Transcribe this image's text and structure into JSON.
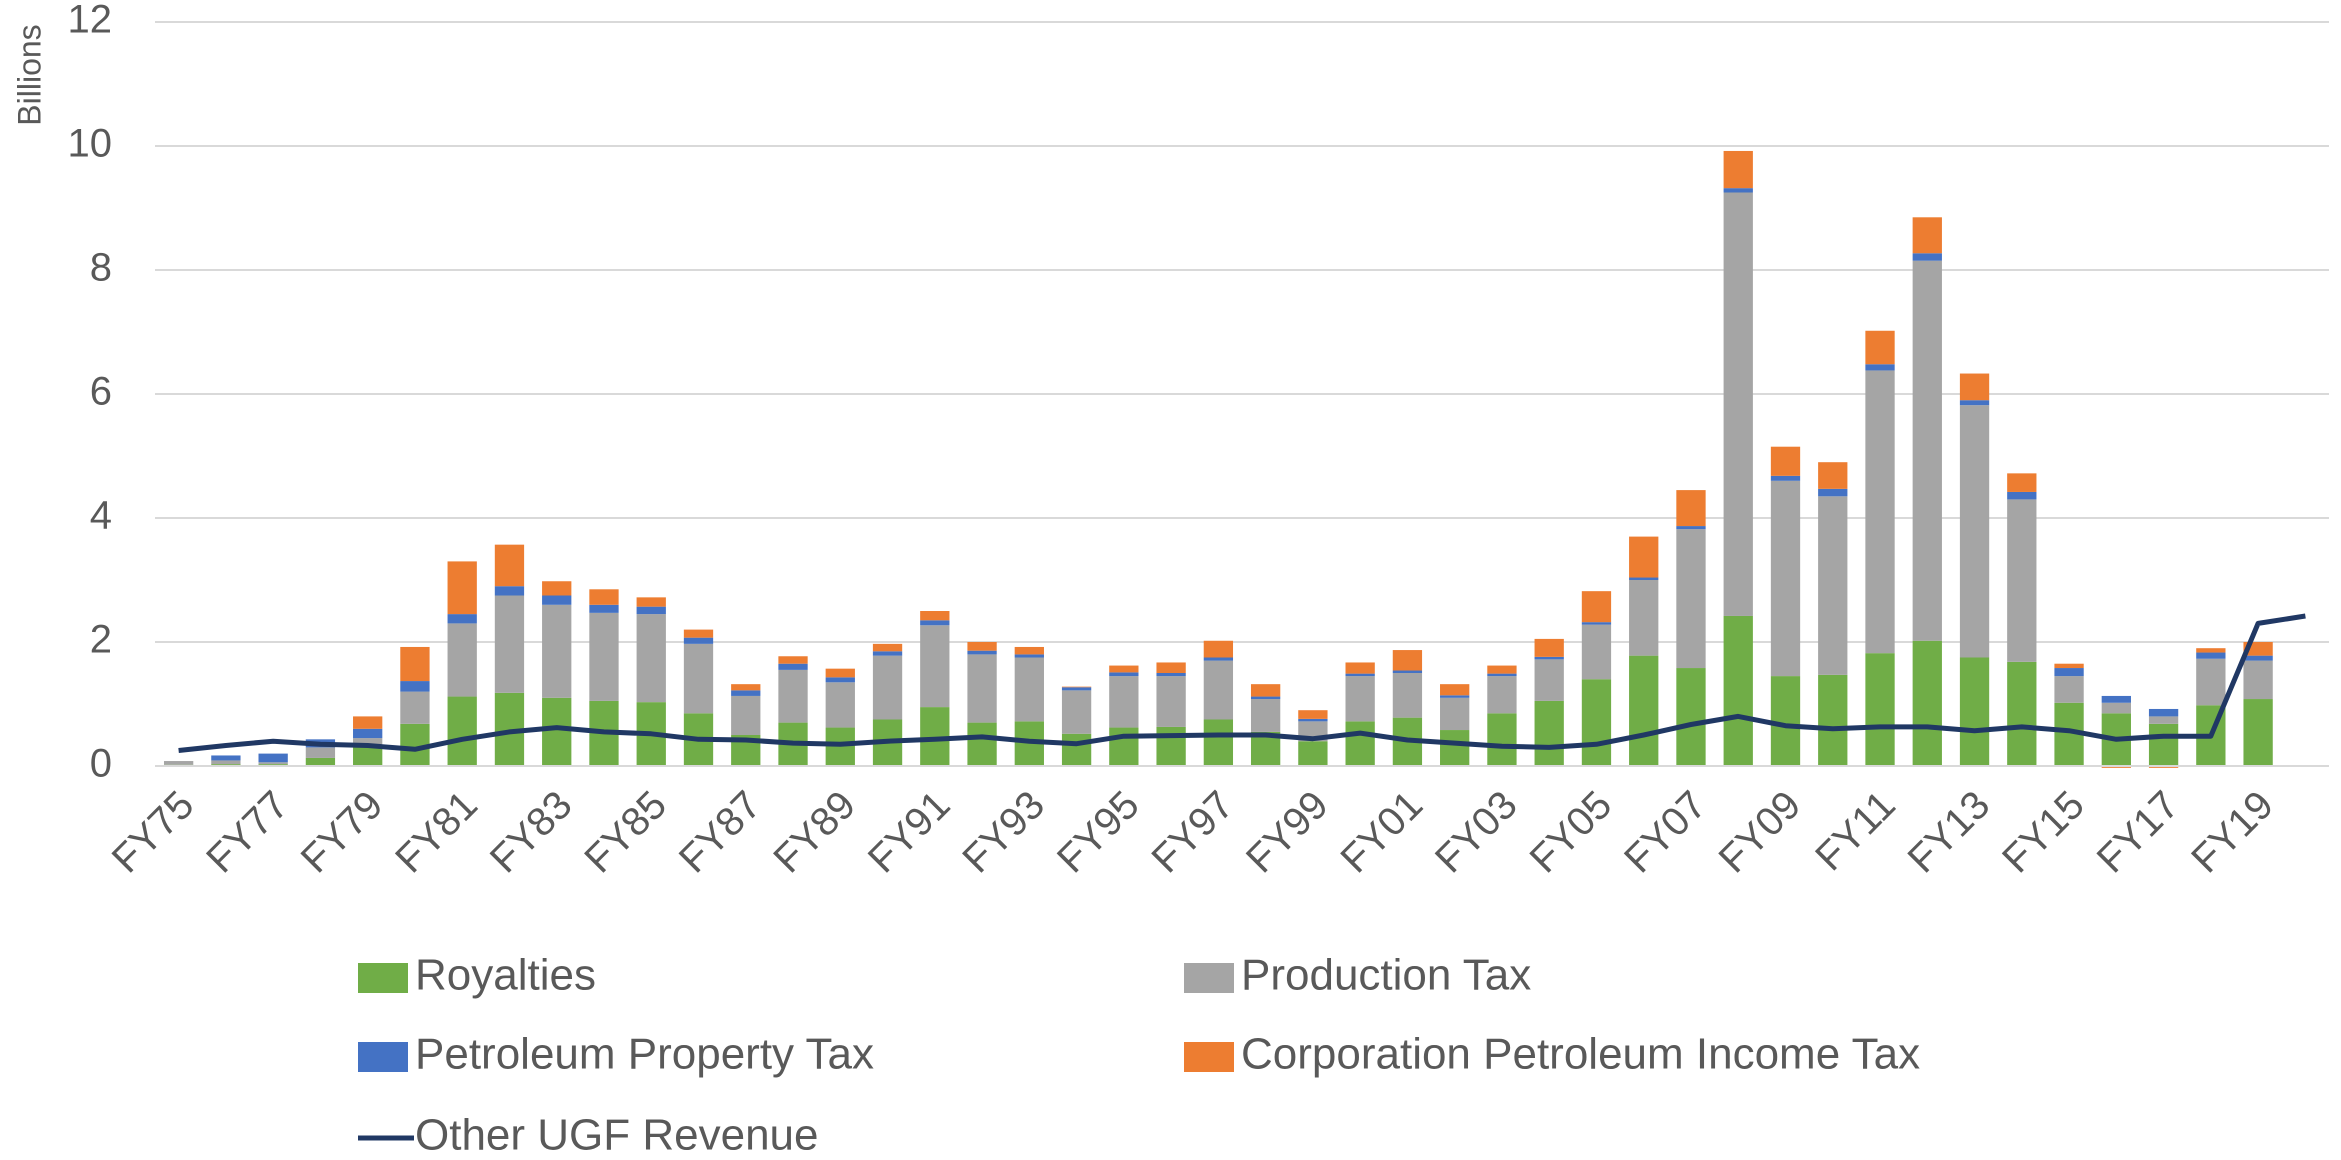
{
  "chart_data": {
    "type": "bar",
    "stacked": true,
    "yaxis_label": "Billions",
    "categories": [
      "FY75",
      null,
      "FY77",
      null,
      "FY79",
      null,
      "FY81",
      null,
      "FY83",
      null,
      "FY85",
      null,
      "FY87",
      null,
      "FY89",
      null,
      "FY91",
      null,
      "FY93",
      null,
      "FY95",
      null,
      "FY97",
      null,
      "FY99",
      null,
      "FY01",
      null,
      "FY03",
      null,
      "FY05",
      null,
      "FY07",
      null,
      "FY09",
      null,
      "FY11",
      null,
      "FY13",
      null,
      "FY15",
      null,
      "FY17",
      null,
      "FY19",
      null
    ],
    "series": [
      {
        "name": "Royalties",
        "color": "#70ad47",
        "values": [
          0.02,
          0.03,
          0.03,
          0.13,
          0.3,
          0.68,
          1.12,
          1.18,
          1.1,
          1.05,
          1.03,
          0.85,
          0.5,
          0.7,
          0.62,
          0.75,
          0.95,
          0.7,
          0.72,
          0.52,
          0.62,
          0.63,
          0.75,
          0.55,
          0.4,
          0.72,
          0.78,
          0.58,
          0.85,
          1.05,
          1.4,
          1.78,
          1.58,
          2.42,
          1.45,
          1.47,
          1.82,
          2.02,
          1.75,
          1.68,
          1.02,
          0.85,
          0.68,
          0.98,
          1.08,
          null
        ]
      },
      {
        "name": "Production Tax",
        "color": "#a5a5a5",
        "values": [
          0.06,
          0.06,
          0.03,
          0.17,
          0.15,
          0.52,
          1.18,
          1.57,
          1.5,
          1.42,
          1.42,
          1.12,
          0.63,
          0.85,
          0.73,
          1.03,
          1.32,
          1.1,
          1.03,
          0.7,
          0.83,
          0.82,
          0.95,
          0.53,
          0.32,
          0.73,
          0.72,
          0.52,
          0.6,
          0.67,
          0.88,
          1.22,
          2.24,
          6.83,
          3.15,
          2.88,
          4.56,
          6.13,
          4.07,
          2.62,
          0.43,
          0.17,
          0.12,
          0.75,
          0.62,
          null
        ]
      },
      {
        "name": "Petroleum Property Tax",
        "color": "#4472c4",
        "values": [
          0,
          0.08,
          0.14,
          0.13,
          0.15,
          0.17,
          0.15,
          0.15,
          0.15,
          0.13,
          0.12,
          0.1,
          0.09,
          0.1,
          0.08,
          0.07,
          0.08,
          0.06,
          0.05,
          0.05,
          0.06,
          0.05,
          0.05,
          0.04,
          0.04,
          0.04,
          0.04,
          0.04,
          0.04,
          0.04,
          0.04,
          0.04,
          0.05,
          0.07,
          0.08,
          0.12,
          0.1,
          0.12,
          0.08,
          0.12,
          0.13,
          0.11,
          0.12,
          0.1,
          0.08,
          null
        ]
      },
      {
        "name": "Corporation Petroleum Income Tax",
        "color": "#ed7d31",
        "values": [
          0,
          0,
          0,
          0,
          0.2,
          0.55,
          0.85,
          0.67,
          0.23,
          0.25,
          0.15,
          0.13,
          0.1,
          0.12,
          0.14,
          0.12,
          0.15,
          0.14,
          0.12,
          0.01,
          0.11,
          0.17,
          0.27,
          0.2,
          0.14,
          0.18,
          0.33,
          0.18,
          0.13,
          0.29,
          0.5,
          0.66,
          0.58,
          0.6,
          0.47,
          0.43,
          0.54,
          0.58,
          0.43,
          0.3,
          0.07,
          -0.03,
          -0.03,
          0.07,
          0.22,
          null
        ]
      },
      {
        "name": "Other UGF Revenue",
        "type": "line",
        "color": "#203864",
        "values": [
          0.25,
          0.33,
          0.4,
          0.35,
          0.33,
          0.27,
          0.43,
          0.55,
          0.62,
          0.55,
          0.52,
          0.43,
          0.42,
          0.37,
          0.35,
          0.4,
          0.43,
          0.47,
          0.4,
          0.36,
          0.48,
          0.49,
          0.5,
          0.5,
          0.44,
          0.53,
          0.42,
          0.37,
          0.32,
          0.3,
          0.35,
          0.5,
          0.67,
          0.8,
          0.65,
          0.6,
          0.63,
          0.63,
          0.57,
          0.63,
          0.57,
          0.43,
          0.48,
          0.48,
          2.3,
          2.42
        ]
      }
    ],
    "ylim": [
      0,
      12
    ],
    "yticks": [
      0,
      2,
      4,
      6,
      8,
      10,
      12
    ],
    "grid": true,
    "legend": "bottom"
  }
}
